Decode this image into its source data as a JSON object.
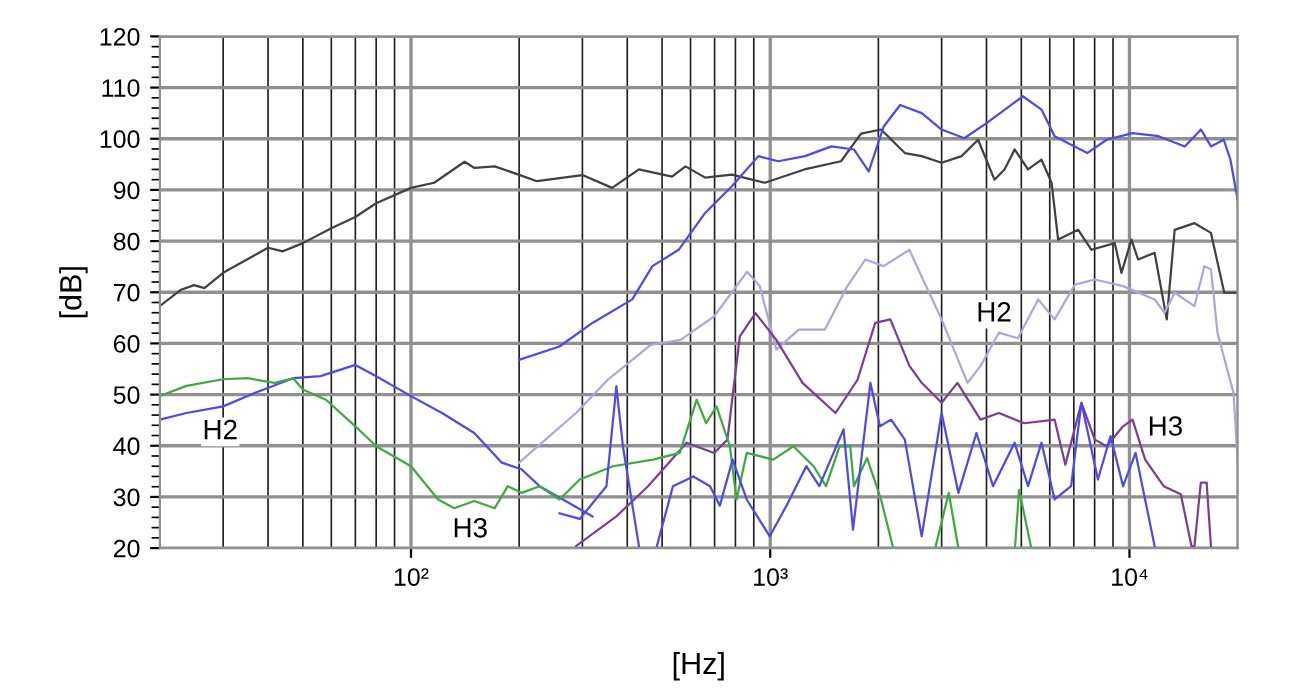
{
  "chart_data": {
    "type": "line",
    "xlabel": "[Hz]",
    "ylabel": "[dB]",
    "log": "x",
    "xlim": [
      20,
      20000
    ],
    "ylim": [
      20,
      120
    ],
    "xticks": [
      {
        "value": 100,
        "label": "10²"
      },
      {
        "value": 1000,
        "label": "10³"
      },
      {
        "value": 10000,
        "label": "10⁴"
      }
    ],
    "yticks": [
      20,
      30,
      40,
      50,
      60,
      70,
      80,
      90,
      100,
      110,
      120
    ],
    "grid": true,
    "marker": "none",
    "line_style": "solid",
    "annotations": [
      "H2",
      "H3",
      "H2",
      "H3"
    ],
    "series": [
      {
        "color": "#404040",
        "x": [
          20,
          22.9,
          24.9,
          26.6,
          30,
          40,
          44,
          50,
          60,
          70,
          80,
          100,
          116,
          141,
          150,
          171,
          203,
          224,
          300,
          363,
          431,
          533,
          581,
          659,
          782,
          966,
          1245,
          1574,
          1790,
          2035,
          2370,
          2640,
          3000,
          3410,
          3790,
          4210,
          4490,
          4790,
          5220,
          5690,
          6070,
          6330,
          7200,
          7840,
          9100,
          9500,
          10130,
          10570,
          11750,
          12700,
          13360,
          15170,
          16860,
          18360,
          20000
        ],
        "values": [
          67.3,
          70.5,
          71.4,
          70.8,
          73.8,
          78.7,
          78,
          79.6,
          82.5,
          84.7,
          87.4,
          90.4,
          91.4,
          95.5,
          94.3,
          94.6,
          92.8,
          91.7,
          92.9,
          90.4,
          94,
          92.6,
          94.6,
          92.4,
          93,
          91.4,
          94,
          95.6,
          101,
          101.8,
          97.2,
          96.6,
          95.3,
          96.6,
          99.8,
          92,
          94,
          97.9,
          94,
          95.9,
          91.4,
          80.3,
          82.2,
          78.3,
          79.6,
          73.8,
          80.3,
          76.4,
          77.7,
          64.7,
          82.2,
          83.5,
          81.6,
          69.9,
          69.9
        ]
      },
      {
        "color": "#4a4af0",
        "x": [
          200,
          259,
          320,
          413,
          470,
          556,
          659,
          782,
          927,
          1053,
          1250,
          1480,
          1710,
          1880,
          2070,
          2300,
          2640,
          3000,
          3470,
          4010,
          5050,
          5690,
          6190,
          7630,
          8640,
          10200,
          12050,
          14260,
          15810,
          16860,
          18300,
          19100,
          20000
        ],
        "values": [
          56.8,
          59.4,
          64,
          68.6,
          75.1,
          78.3,
          85.5,
          90.7,
          96.6,
          95.6,
          96.6,
          98.5,
          97.9,
          93.6,
          102.4,
          106.6,
          105,
          101.8,
          100.1,
          103.1,
          108.3,
          105.7,
          100.5,
          97.2,
          99.8,
          101.1,
          100.5,
          98.5,
          101.8,
          98.5,
          99.8,
          95.9,
          88.1
        ]
      },
      {
        "color": "#a8a8e0",
        "x": [
          200,
          288,
          353,
          465,
          563,
          698,
          862,
          935,
          1040,
          1200,
          1420,
          1640,
          1840,
          2070,
          2440,
          2690,
          3000,
          3540,
          3850,
          4330,
          4890,
          5570,
          6190,
          7050,
          8010,
          9600,
          11750,
          12520,
          13360,
          15170,
          16160,
          16860,
          17580,
          19480,
          20000
        ],
        "values": [
          36.7,
          46.4,
          52.9,
          59.7,
          60.7,
          65.3,
          74,
          71.2,
          58.8,
          62.7,
          62.7,
          71.2,
          76.4,
          75.1,
          78.3,
          71.8,
          64.7,
          52.3,
          55.6,
          62.1,
          61,
          68.6,
          64.7,
          71.5,
          72.5,
          71.2,
          68.6,
          66,
          69.9,
          67.3,
          75.1,
          74.5,
          62.1,
          50.3,
          37.3
        ]
      },
      {
        "color": "#7a3d9a",
        "x": [
          288,
          373,
          457,
          585,
          698,
          760,
          823,
          910,
          1040,
          1230,
          1520,
          1750,
          1960,
          2160,
          2440,
          2640,
          3000,
          3320,
          3850,
          4330,
          5090,
          6190,
          6630,
          7350,
          8010,
          8640,
          9600,
          10200,
          11060,
          12450,
          13900,
          14880,
          15170,
          15800,
          16400,
          16860
        ],
        "values": [
          20.4,
          26.2,
          32.1,
          40.6,
          38.6,
          41.2,
          61.4,
          65.9,
          60.7,
          52.3,
          46.4,
          52.9,
          64,
          64.7,
          55.6,
          52.3,
          48.4,
          52.3,
          45.1,
          46.4,
          44.4,
          45.1,
          36.3,
          48.4,
          41.2,
          39.9,
          43.8,
          45.1,
          37.3,
          32.1,
          30.5,
          20.4,
          20.4,
          32.8,
          32.8,
          20.4
        ]
      },
      {
        "color": "#4a4af0",
        "x": [
          20,
          23.7,
          30,
          36.7,
          47,
          56,
          70,
          80,
          100,
          122,
          150,
          179,
          203,
          228,
          320
        ],
        "values": [
          45.1,
          46.4,
          47.7,
          50.3,
          53.2,
          53.6,
          55.8,
          53.6,
          49.7,
          46.4,
          42.5,
          36.7,
          35.4,
          32.1,
          26.2
        ]
      },
      {
        "color": "#3caa3c",
        "x": [
          20,
          23.7,
          30,
          35.1,
          41.7,
          47,
          50,
          58,
          70,
          80,
          100,
          119,
          132,
          150,
          171,
          186,
          203,
          228,
          259,
          295,
          365,
          472,
          560,
          624,
          663,
          709,
          772,
          806,
          860,
          1020,
          1160,
          1320,
          1430,
          1560,
          1670,
          1710,
          1860,
          2035,
          2200
        ],
        "values": [
          49.7,
          51.7,
          53,
          53.2,
          52.3,
          53.2,
          51,
          49,
          43.8,
          39.9,
          36,
          29.5,
          27.8,
          29.2,
          27.8,
          32.1,
          30.8,
          32.1,
          29.5,
          33.4,
          36,
          37.3,
          38.6,
          49,
          44.4,
          47.7,
          39.9,
          29.5,
          38.6,
          37.3,
          39.9,
          36,
          32.1,
          39.9,
          39.9,
          32.1,
          37.6,
          29.5,
          20
        ]
      },
      {
        "color": "#3caa3c",
        "x": [
          2880,
          3140,
          3340
        ],
        "values": [
          20,
          30.8,
          20
        ]
      },
      {
        "color": "#3caa3c",
        "x": [
          4800,
          4930,
          5330
        ],
        "values": [
          20,
          31.4,
          20
        ]
      },
      {
        "color": "#4a4af0",
        "x": [
          259,
          295,
          350,
          373,
          389,
          432,
          482,
          536,
          611,
          680,
          724,
          786,
          860,
          997,
          1110,
          1260,
          1370,
          1600,
          1700,
          1900,
          2020,
          2170,
          2370,
          2640,
          3000,
          3340,
          3750,
          4170,
          4790,
          5220,
          5690,
          6190,
          6880,
          7350,
          8170,
          8860,
          9600,
          10400,
          11750
        ],
        "values": [
          26.8,
          25.7,
          32.1,
          51.6,
          39.9,
          20,
          20,
          32.1,
          34,
          32.1,
          28.3,
          37.3,
          29.5,
          22.3,
          28.3,
          36,
          32.1,
          43.2,
          23.6,
          52.3,
          43.8,
          45.1,
          41.2,
          22.3,
          46.4,
          30.8,
          42.5,
          32.1,
          40.6,
          32.1,
          40.6,
          29.5,
          32.1,
          48.4,
          33.4,
          41.9,
          32.1,
          38.6,
          20.4
        ]
      }
    ]
  }
}
